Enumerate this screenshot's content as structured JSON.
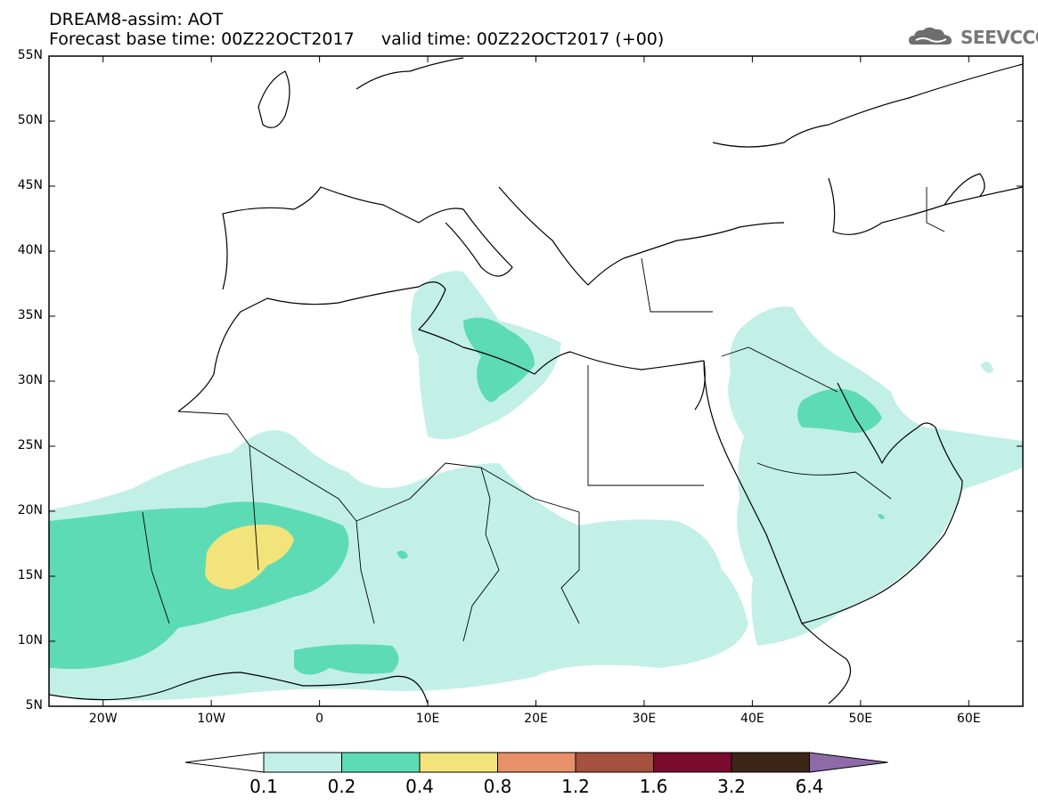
{
  "header": {
    "title": "DREAM8-assim: AOT",
    "forecast_line": "Forecast base time: 00Z22OCT2017     valid time: 00Z22OCT2017 (+00)"
  },
  "logo": {
    "text": "SEEVCCC",
    "icon": "cloud-logo-icon"
  },
  "map": {
    "lon_range": [
      -25,
      65
    ],
    "lat_range": [
      5,
      55
    ],
    "lat_ticks": [
      "55N",
      "50N",
      "45N",
      "40N",
      "35N",
      "30N",
      "25N",
      "20N",
      "15N",
      "10N",
      "5N"
    ],
    "lon_ticks": [
      "20W",
      "10W",
      "0",
      "10E",
      "20E",
      "30E",
      "40E",
      "50E",
      "60E"
    ],
    "colors": {
      "land_line": "#000000",
      "background": "#ffffff"
    }
  },
  "colorbar": {
    "labels": [
      "0.1",
      "0.2",
      "0.4",
      "0.8",
      "1.2",
      "1.6",
      "3.2",
      "6.4"
    ],
    "colors": [
      "#ffffff",
      "#c2f0e6",
      "#5ddbb5",
      "#f2e47a",
      "#e8906a",
      "#a6503e",
      "#7a0a2e",
      "#3c2618",
      "#8e6ba8"
    ]
  }
}
